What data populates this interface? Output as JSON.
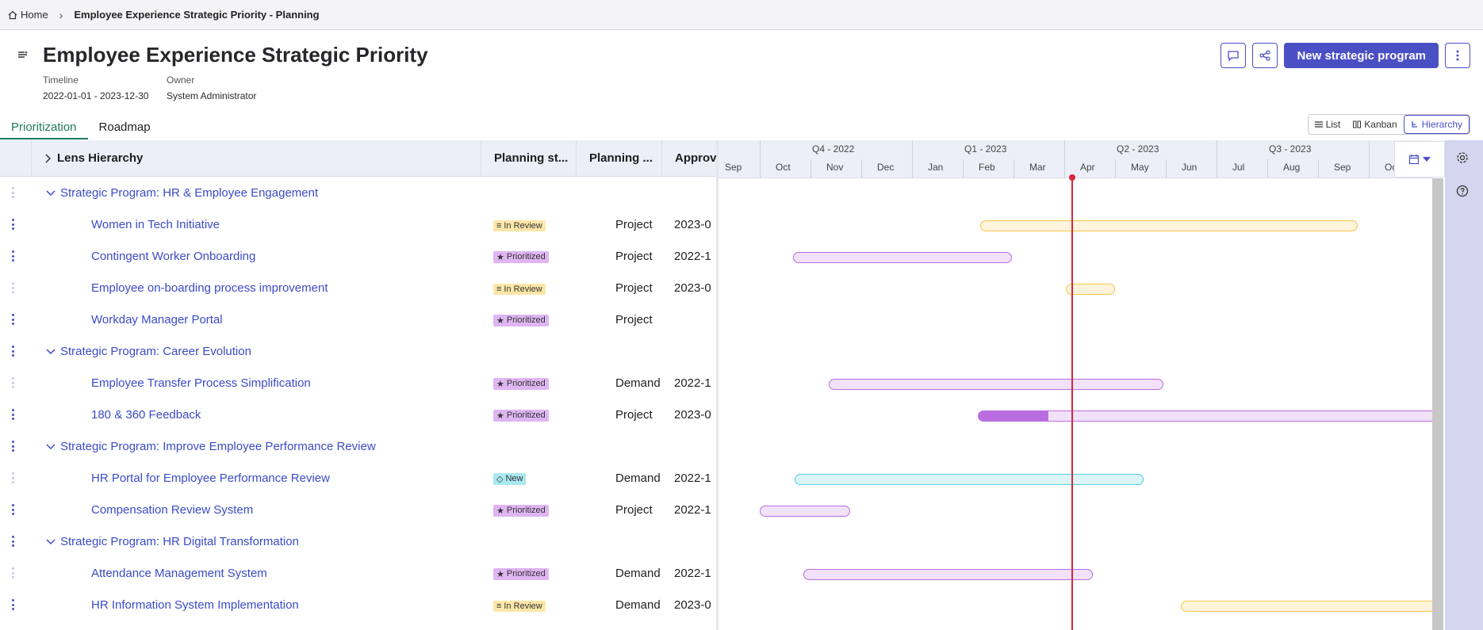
{
  "breadcrumb": {
    "home": "Home",
    "current": "Employee Experience Strategic Priority - Planning"
  },
  "header": {
    "title": "Employee Experience Strategic Priority",
    "timeline_label": "Timeline",
    "timeline_value": "2022-01-01 - 2023-12-30",
    "owner_label": "Owner",
    "owner_value": "System Administrator",
    "primary_button": "New strategic program"
  },
  "tabs": [
    {
      "label": "Prioritization",
      "active": true
    },
    {
      "label": "Roadmap",
      "active": false
    }
  ],
  "view_toggle": [
    {
      "label": "List"
    },
    {
      "label": "Kanban"
    },
    {
      "label": "Hierarchy",
      "selected": true
    }
  ],
  "grid": {
    "columns": [
      "Lens Hierarchy",
      "Planning st...",
      "Planning ...",
      "Approv"
    ],
    "rows": [
      {
        "kind": "group",
        "name": "Strategic Program: HR & Employee Engagement"
      },
      {
        "kind": "item",
        "name": "Women in Tech Initiative",
        "status": "In Review",
        "type": "Project",
        "approved": "2023-0"
      },
      {
        "kind": "item",
        "name": "Contingent Worker Onboarding",
        "status": "Prioritized",
        "type": "Project",
        "approved": "2022-1"
      },
      {
        "kind": "item",
        "name": "Employee on-boarding process improvement",
        "status": "In Review",
        "type": "Project",
        "approved": "2023-0"
      },
      {
        "kind": "item",
        "name": "Workday Manager Portal",
        "status": "Prioritized",
        "type": "Project",
        "approved": ""
      },
      {
        "kind": "group",
        "name": "Strategic Program: Career Evolution"
      },
      {
        "kind": "item",
        "name": "Employee Transfer Process Simplification",
        "status": "Prioritized",
        "type": "Demand",
        "approved": "2022-1"
      },
      {
        "kind": "item",
        "name": "180 & 360 Feedback",
        "status": "Prioritized",
        "type": "Project",
        "approved": "2023-0"
      },
      {
        "kind": "group",
        "name": "Strategic Program: Improve Employee Performance Review"
      },
      {
        "kind": "item",
        "name": "HR Portal for Employee Performance Review",
        "status": "New",
        "type": "Demand",
        "approved": "2022-1"
      },
      {
        "kind": "item",
        "name": "Compensation Review System",
        "status": "Prioritized",
        "type": "Project",
        "approved": "2022-1"
      },
      {
        "kind": "group",
        "name": "Strategic Program: HR Digital Transformation"
      },
      {
        "kind": "item",
        "name": "Attendance Management System",
        "status": "Prioritized",
        "type": "Demand",
        "approved": "2022-1"
      },
      {
        "kind": "item",
        "name": "HR Information System Implementation",
        "status": "In Review",
        "type": "Demand",
        "approved": "2023-0"
      }
    ]
  },
  "gantt": {
    "quarters": [
      "Q4 - 2022",
      "Q1 - 2023",
      "Q2 - 2023",
      "Q3 - 2023"
    ],
    "months": [
      "Sep",
      "Oct",
      "Nov",
      "Dec",
      "Jan",
      "Feb",
      "Mar",
      "Apr",
      "May",
      "Jun",
      "Jul",
      "Aug",
      "Sep",
      "Oc"
    ],
    "colors": {
      "In Review": "#f9c74f",
      "Prioritized": "#b96de0",
      "New": "#4ecfe0",
      "today": "#d7263d"
    }
  }
}
